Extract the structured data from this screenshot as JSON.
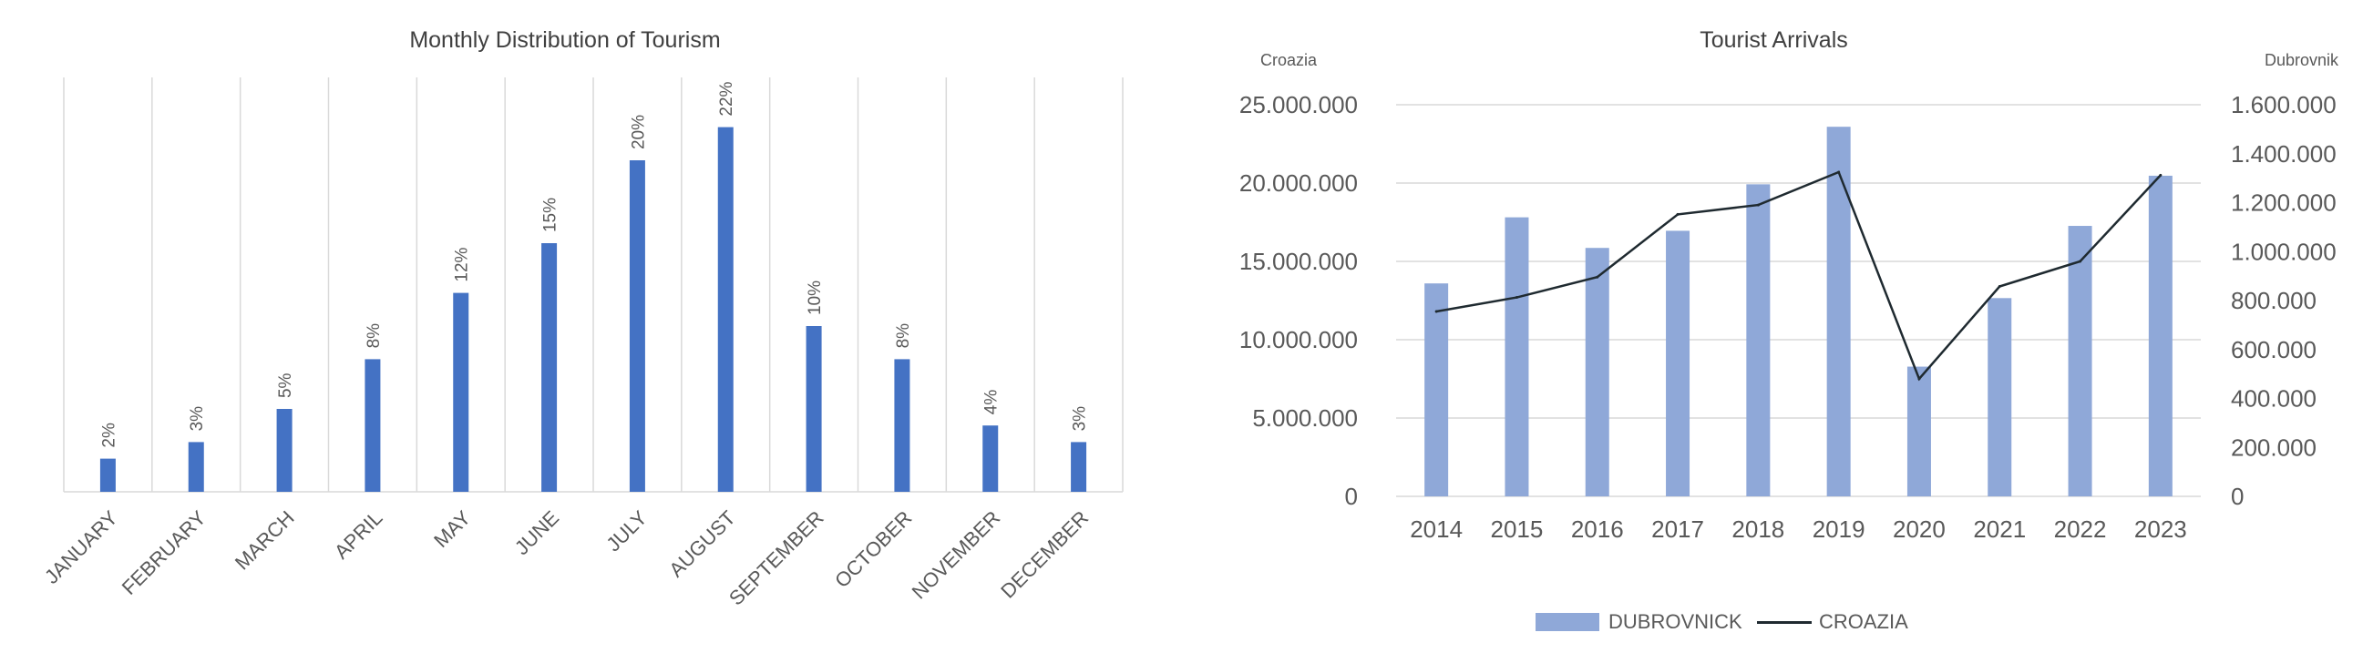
{
  "chart_data": [
    {
      "type": "bar",
      "title": "Monthly Distribution of Tourism",
      "categories": [
        "JANUARY",
        "FEBRUARY",
        "MARCH",
        "APRIL",
        "MAY",
        "JUNE",
        "JULY",
        "AUGUST",
        "SEPTEMBER",
        "OCTOBER",
        "NOVEMBER",
        "DECEMBER"
      ],
      "values": [
        2,
        3,
        5,
        8,
        12,
        15,
        20,
        22,
        10,
        8,
        4,
        3
      ],
      "data_labels": [
        "2%",
        "3%",
        "5%",
        "8%",
        "12%",
        "15%",
        "20%",
        "22%",
        "10%",
        "8%",
        "4%",
        "3%"
      ],
      "ylim": [
        0,
        25
      ],
      "grid": "vertical",
      "colors": {
        "bar": "#4472c4"
      }
    },
    {
      "type": "bar+line",
      "title": "Tourist Arrivals",
      "categories": [
        "2014",
        "2015",
        "2016",
        "2017",
        "2018",
        "2019",
        "2020",
        "2021",
        "2022",
        "2023"
      ],
      "series": [
        {
          "name": "DUBROVNICK",
          "type": "bar",
          "axis": "right",
          "values": [
            870000,
            1140000,
            1015000,
            1085000,
            1275000,
            1510000,
            530000,
            810000,
            1105000,
            1310000
          ]
        },
        {
          "name": "CROAZIA",
          "type": "line",
          "axis": "left",
          "values": [
            11800000,
            12700000,
            14000000,
            18000000,
            18600000,
            20700000,
            7500000,
            13400000,
            15000000,
            20500000
          ]
        }
      ],
      "left_axis": {
        "label": "Croazia",
        "ylim": [
          0,
          25000000
        ],
        "ticks": [
          "0",
          "5.000.000",
          "10.000.000",
          "15.000.000",
          "20.000.000",
          "25.000.000"
        ]
      },
      "right_axis": {
        "label": "Dubrovnik",
        "ylim": [
          0,
          1600000
        ],
        "ticks": [
          "0",
          "200.000",
          "400.000",
          "600.000",
          "800.000",
          "1.000.000",
          "1.200.000",
          "1.400.000",
          "1.600.000"
        ]
      },
      "grid": "horizontal",
      "legend": "bottom",
      "colors": {
        "bar": "#8fa8d8",
        "line": "#1f2a30"
      }
    }
  ]
}
